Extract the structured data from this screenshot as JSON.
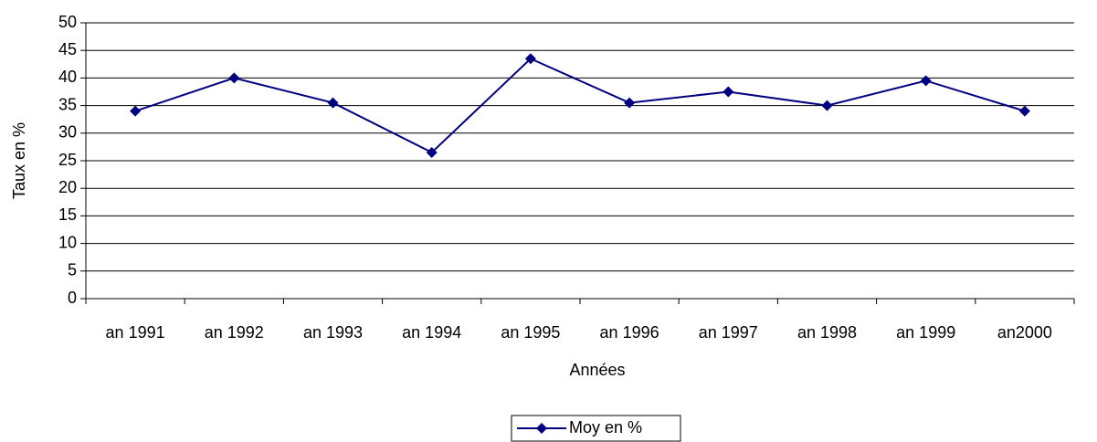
{
  "chart_data": {
    "type": "line",
    "x_label": "Années",
    "y_label": "Taux en %",
    "categories": [
      "an 1991",
      "an 1992",
      "an 1993",
      "an 1994",
      "an 1995",
      "an 1996",
      "an 1997",
      "an 1998",
      "an 1999",
      "an2000"
    ],
    "series": [
      {
        "name": "Moy en %",
        "color": "#000080",
        "values": [
          34,
          40,
          35.5,
          26.5,
          43.5,
          35.5,
          37.5,
          35,
          39.5,
          34
        ]
      }
    ],
    "ylim": [
      0,
      50
    ],
    "yticks": [
      0,
      5,
      10,
      15,
      20,
      25,
      30,
      35,
      40,
      45,
      50
    ],
    "grid": true,
    "legend": "bottom"
  }
}
